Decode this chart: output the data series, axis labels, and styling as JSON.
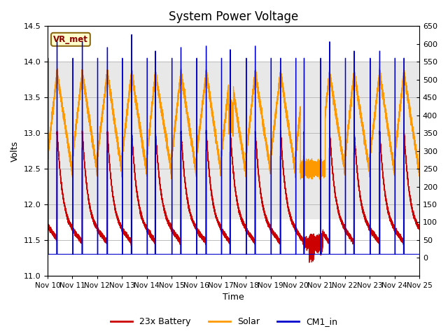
{
  "title": "System Power Voltage",
  "xlabel": "Time",
  "ylabel": "Volts",
  "ylim_left": [
    11.0,
    14.5
  ],
  "ylim_right": [
    -50,
    650
  ],
  "yticks_left": [
    11.0,
    11.5,
    12.0,
    12.5,
    13.0,
    13.5,
    14.0,
    14.5
  ],
  "yticks_right": [
    0,
    50,
    100,
    150,
    200,
    250,
    300,
    350,
    400,
    450,
    500,
    550,
    600,
    650
  ],
  "xlim": [
    0,
    15
  ],
  "xtick_labels": [
    "Nov 10",
    "Nov 11",
    "Nov 12",
    "Nov 13",
    "Nov 14",
    "Nov 15",
    "Nov 16",
    "Nov 17",
    "Nov 18",
    "Nov 19",
    "Nov 20",
    "Nov 21",
    "Nov 22",
    "Nov 23",
    "Nov 24",
    "Nov 25"
  ],
  "shade_ymin": 11.8,
  "shade_ymax": 14.0,
  "legend_labels": [
    "23x Battery",
    "Solar",
    "CM1_in"
  ],
  "legend_colors": [
    "#cc0000",
    "#ff9900",
    "#0000cc"
  ],
  "vr_met_label": "VR_met",
  "background_color": "#ffffff",
  "grid_color": "#bbbbbb",
  "shade_color": "#e8e8e8",
  "title_fontsize": 12,
  "axis_fontsize": 9
}
